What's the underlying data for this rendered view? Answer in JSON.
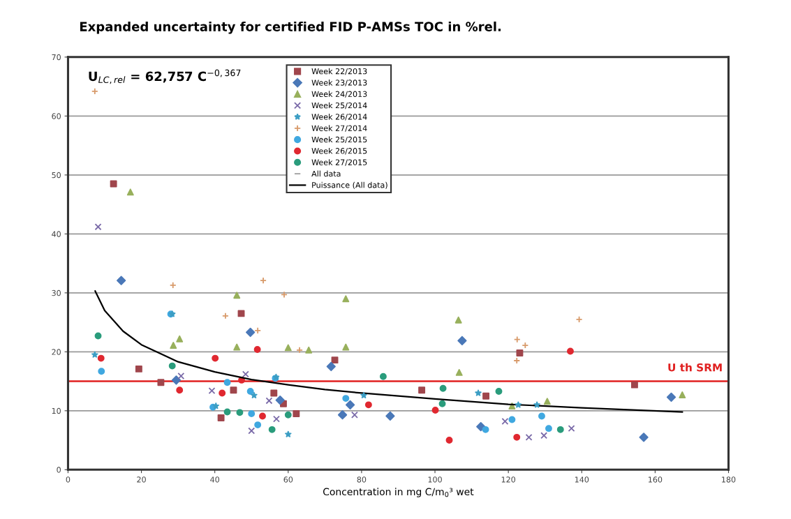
{
  "chart_data": {
    "type": "scatter",
    "title": "Expanded uncertainty for certified FID P-AMSs TOC in %rel.",
    "xlabel": "Concentration in mg C/m$_{0}$³ wet",
    "xlim": [
      0,
      180
    ],
    "xticks": [
      0,
      20,
      40,
      60,
      80,
      100,
      120,
      140,
      160,
      180
    ],
    "ylim": [
      0,
      70
    ],
    "yticks": [
      0,
      10,
      20,
      30,
      40,
      50,
      60,
      70
    ],
    "grid": "y",
    "legend": "top",
    "annotations": [
      "U$_{LC,rel}$ = 62,757 C$^{−0,367}$"
    ],
    "ref_lines": [
      {
        "axis": "y",
        "value": 15,
        "label": "U th SRM",
        "color": "#e02020",
        "line_style": "solid"
      }
    ],
    "series": [
      {
        "name": "Week 22/2013",
        "color": "#a0464c",
        "marker": "square",
        "x": [
          12.4,
          47.2,
          72.7,
          19.3,
          25.3,
          45.1,
          56.1,
          58.7,
          62.2,
          41.7,
          96.4,
          123.1,
          113.9,
          154.4
        ],
        "values": [
          48.5,
          26.5,
          18.6,
          17.1,
          14.8,
          13.5,
          13.0,
          11.2,
          9.5,
          8.8,
          13.5,
          19.8,
          12.5,
          14.4
        ]
      },
      {
        "name": "Week 23/2013",
        "color": "#4a78b8",
        "marker": "diamond",
        "x": [
          14.5,
          49.7,
          71.7,
          29.5,
          57.8,
          76.9,
          74.8,
          87.8,
          107.4,
          112.5,
          164.4,
          156.9
        ],
        "values": [
          32.1,
          23.3,
          17.5,
          15.2,
          11.8,
          11.0,
          9.3,
          9.1,
          21.9,
          7.3,
          12.3,
          5.5
        ]
      },
      {
        "name": "Week 24/2013",
        "color": "#98b05c",
        "marker": "triangle",
        "x": [
          17.0,
          46.0,
          75.7,
          30.4,
          28.7,
          46.0,
          60.0,
          65.6,
          75.7,
          106.4,
          106.6,
          121.0,
          130.6,
          167.4
        ],
        "values": [
          47.1,
          29.6,
          29.0,
          22.2,
          21.1,
          20.8,
          20.7,
          20.3,
          20.8,
          25.4,
          16.5,
          10.8,
          11.6,
          12.7
        ]
      },
      {
        "name": "Week 25/2014",
        "color": "#7a6aa8",
        "marker": "cross",
        "x": [
          8.2,
          30.8,
          39.2,
          48.4,
          54.8,
          56.8,
          50.0,
          78.1,
          119.1,
          137.2,
          125.6,
          129.7
        ],
        "values": [
          41.2,
          15.9,
          13.4,
          16.2,
          11.7,
          8.6,
          6.6,
          9.3,
          8.2,
          7.0,
          5.5,
          5.8
        ]
      },
      {
        "name": "Week 26/2014",
        "color": "#3c9ec4",
        "marker": "star",
        "x": [
          28.4,
          7.3,
          50.7,
          56.7,
          40.3,
          60.0,
          80.6,
          111.8,
          122.7,
          127.8
        ],
        "values": [
          26.4,
          19.5,
          12.6,
          15.7,
          10.8,
          6.0,
          12.6,
          13.0,
          11.0,
          11.0
        ]
      },
      {
        "name": "Week 27/2014",
        "color": "#d89a6a",
        "marker": "plus",
        "x": [
          7.3,
          28.6,
          53.2,
          58.9,
          42.9,
          51.7,
          63.1,
          139.3,
          122.4,
          124.6,
          122.3
        ],
        "values": [
          64.2,
          31.3,
          32.1,
          29.7,
          26.1,
          23.6,
          20.3,
          25.5,
          22.1,
          21.1,
          18.5
        ]
      },
      {
        "name": "Week 25/2015",
        "color": "#40a8e0",
        "marker": "circle",
        "x": [
          28.0,
          9.1,
          43.4,
          49.7,
          39.5,
          50.0,
          51.7,
          75.7,
          121.0,
          113.8,
          129.1,
          131.0,
          56.5
        ],
        "values": [
          26.4,
          16.7,
          14.8,
          13.3,
          10.6,
          9.5,
          7.6,
          12.1,
          8.5,
          6.8,
          9.1,
          7.0,
          15.5
        ]
      },
      {
        "name": "Week 26/2015",
        "color": "#e02830",
        "marker": "circle",
        "x": [
          51.6,
          9.0,
          40.1,
          30.4,
          42.0,
          47.3,
          53.0,
          81.9,
          100.1,
          103.9,
          122.3,
          136.9
        ],
        "values": [
          20.4,
          18.9,
          18.9,
          13.5,
          13.0,
          15.2,
          9.1,
          11.0,
          10.1,
          5.0,
          5.5,
          20.1
        ]
      },
      {
        "name": "Week 27/2015",
        "color": "#2a9c7c",
        "marker": "circle",
        "x": [
          8.2,
          28.4,
          43.4,
          46.8,
          60.0,
          55.6,
          85.9,
          102.2,
          102.0,
          117.4,
          134.2
        ],
        "values": [
          22.7,
          17.6,
          9.8,
          9.7,
          9.3,
          6.8,
          15.8,
          13.8,
          11.2,
          13.3,
          6.8
        ]
      },
      {
        "name": "All data",
        "color": "#a0a0a0",
        "marker": "dash"
      },
      {
        "name": "Puissance (All data)",
        "type": "line",
        "color": "#000000",
        "marker": "none",
        "line_style": "solid",
        "x": [
          7.4,
          10,
          15,
          20,
          30,
          40,
          50,
          60,
          70,
          80,
          100,
          120,
          140,
          167.4
        ],
        "values": [
          30.3,
          27.0,
          23.5,
          21.2,
          18.3,
          16.6,
          15.3,
          14.4,
          13.6,
          13.0,
          12.0,
          11.1,
          10.5,
          9.8
        ]
      }
    ]
  }
}
